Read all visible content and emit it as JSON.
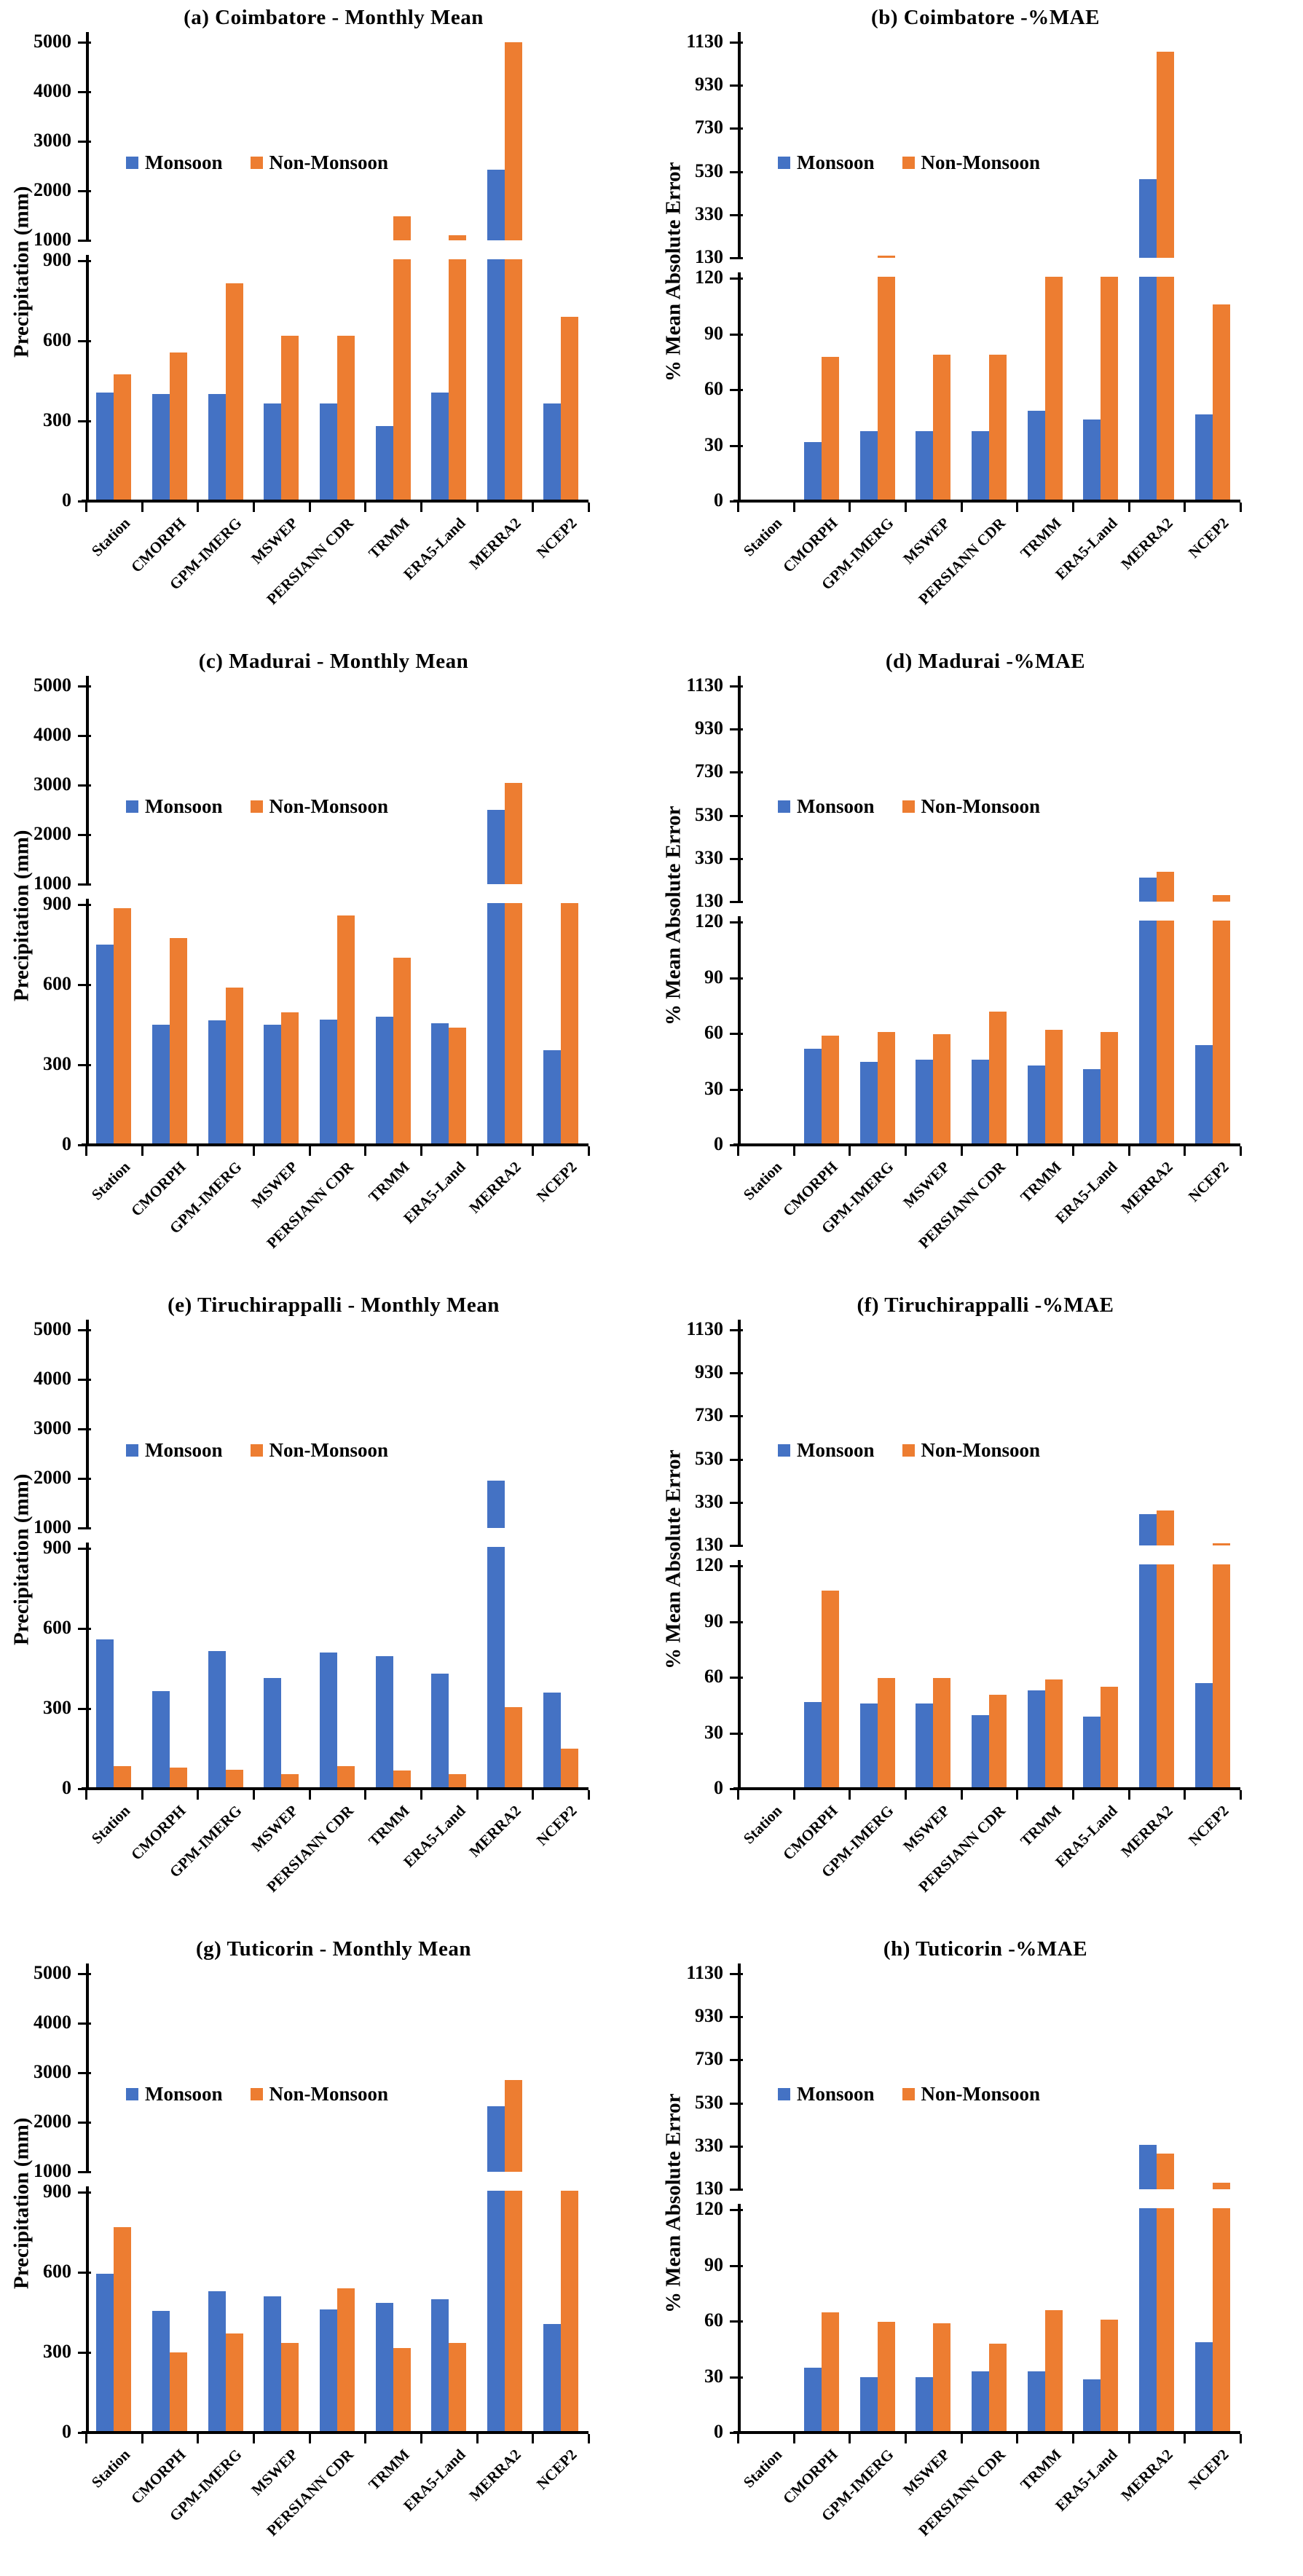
{
  "colors": {
    "monsoon": "#4472C4",
    "non_monsoon": "#ED7D31",
    "axis": "#000000",
    "text": "#000000",
    "background": "#ffffff"
  },
  "legend": {
    "monsoon_label": "Monsoon",
    "non_monsoon_label": "Non-Monsoon"
  },
  "categories": [
    "Station",
    "CMORPH",
    "GPM-IMERG",
    "MSWEP",
    "PERSIANN CDR",
    "TRMM",
    "ERA5-Land",
    "MERRA2",
    "NCEP2"
  ],
  "axes": {
    "precip": {
      "ylabel": "Precipitation (mm)",
      "lower_ticks": [
        0,
        300,
        600,
        900
      ],
      "upper_ticks": [
        1000,
        2000,
        3000,
        4000,
        5000
      ],
      "lower_max": 900,
      "upper_min": 1000,
      "upper_max": 5000,
      "broken_axis": true,
      "grid": false
    },
    "mae": {
      "ylabel": "% Mean Absolute Error",
      "lower_ticks": [
        0,
        30,
        60,
        90,
        120
      ],
      "upper_ticks": [
        130,
        330,
        530,
        730,
        930,
        1130
      ],
      "lower_max": 120,
      "upper_min": 130,
      "upper_max": 1130,
      "broken_axis": true,
      "grid": false
    }
  },
  "chart_data": [
    {
      "id": "a",
      "type": "bar",
      "axis": "precip",
      "title": "(a)  Coimbatore - Monthly Mean",
      "legend_position": "upper-left-inside",
      "series": [
        {
          "name": "Monsoon",
          "values": [
            400,
            395,
            395,
            360,
            360,
            275,
            400,
            2430,
            360
          ]
        },
        {
          "name": "Non-Monsoon",
          "values": [
            470,
            550,
            810,
            615,
            615,
            1490,
            1100,
            5000,
            685
          ]
        }
      ]
    },
    {
      "id": "b",
      "type": "bar",
      "axis": "mae",
      "title": "(b)  Coimbatore -%MAE",
      "legend_position": "upper-left-inside",
      "series": [
        {
          "name": "Monsoon",
          "values": [
            0,
            31,
            37,
            37,
            37,
            48,
            43,
            495,
            46
          ]
        },
        {
          "name": "Non-Monsoon",
          "values": [
            0,
            77,
            133,
            78,
            78,
            122,
            122,
            1085,
            105
          ]
        }
      ]
    },
    {
      "id": "c",
      "type": "bar",
      "axis": "precip",
      "title": "(c)  Madurai - Monthly Mean",
      "legend_position": "upper-left-inside",
      "series": [
        {
          "name": "Monsoon",
          "values": [
            745,
            445,
            460,
            445,
            465,
            475,
            450,
            2500,
            350
          ]
        },
        {
          "name": "Non-Monsoon",
          "values": [
            880,
            770,
            585,
            490,
            855,
            695,
            435,
            3050,
            900
          ]
        }
      ]
    },
    {
      "id": "d",
      "type": "bar",
      "axis": "mae",
      "title": "(d)  Madurai -%MAE",
      "legend_position": "upper-left-inside",
      "series": [
        {
          "name": "Monsoon",
          "values": [
            0,
            51,
            44,
            45,
            45,
            42,
            40,
            240,
            53
          ]
        },
        {
          "name": "Non-Monsoon",
          "values": [
            0,
            58,
            60,
            59,
            71,
            61,
            60,
            270,
            160
          ]
        }
      ]
    },
    {
      "id": "e",
      "type": "bar",
      "axis": "precip",
      "title": "(e) Tiruchirappalli - Monthly Mean",
      "legend_position": "upper-left-inside",
      "series": [
        {
          "name": "Monsoon",
          "values": [
            555,
            360,
            510,
            410,
            505,
            490,
            425,
            1950,
            355
          ]
        },
        {
          "name": "Non-Monsoon",
          "values": [
            80,
            75,
            65,
            48,
            78,
            62,
            48,
            300,
            145
          ]
        }
      ]
    },
    {
      "id": "f",
      "type": "bar",
      "axis": "mae",
      "title": "(f) Tiruchirappalli -%MAE",
      "legend_position": "upper-left-inside",
      "series": [
        {
          "name": "Monsoon",
          "values": [
            0,
            46,
            45,
            45,
            39,
            52,
            38,
            275,
            56
          ]
        },
        {
          "name": "Non-Monsoon",
          "values": [
            0,
            106,
            59,
            59,
            50,
            58,
            54,
            293,
            133
          ]
        }
      ]
    },
    {
      "id": "g",
      "type": "bar",
      "axis": "precip",
      "title": "(g) Tuticorin - Monthly Mean",
      "legend_position": "upper-left-inside",
      "series": [
        {
          "name": "Monsoon",
          "values": [
            590,
            450,
            525,
            505,
            455,
            480,
            495,
            2330,
            400
          ]
        },
        {
          "name": "Non-Monsoon",
          "values": [
            765,
            295,
            365,
            330,
            535,
            310,
            330,
            2860,
            900
          ]
        }
      ]
    },
    {
      "id": "h",
      "type": "bar",
      "axis": "mae",
      "title": "(h)  Tuticorin -%MAE",
      "legend_position": "upper-left-inside",
      "series": [
        {
          "name": "Monsoon",
          "values": [
            0,
            34,
            29,
            29,
            32,
            32,
            28,
            335,
            48
          ]
        },
        {
          "name": "Non-Monsoon",
          "values": [
            0,
            64,
            59,
            58,
            47,
            65,
            60,
            295,
            160
          ]
        }
      ]
    }
  ]
}
